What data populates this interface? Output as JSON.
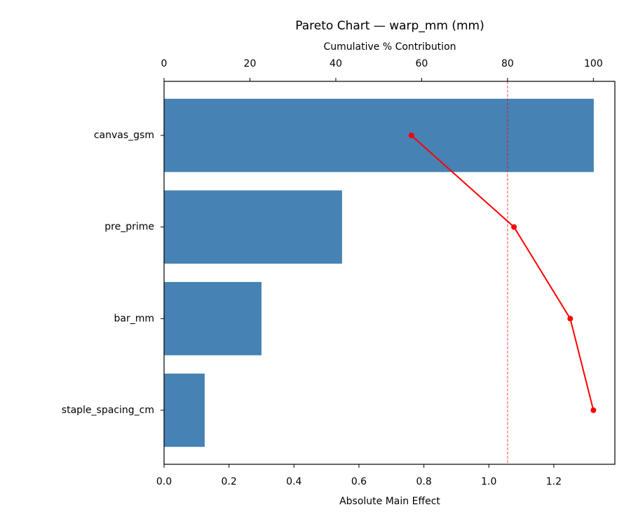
{
  "chart_data": {
    "type": "pareto",
    "title": "Pareto Chart — warp_mm (mm)",
    "xlabel": "Absolute Main Effect",
    "x2label": "Cumulative % Contribution",
    "categories": [
      "canvas_gsm",
      "pre_prime",
      "bar_mm",
      "staple_spacing_cm"
    ],
    "values": [
      1.323,
      0.548,
      0.3,
      0.125
    ],
    "color": "#4682b4",
    "cumulative": {
      "values": [
        57.6,
        81.5,
        94.6,
        100
      ],
      "color": "#ff0000",
      "axis": "x2"
    },
    "threshold": 80,
    "xlim": [
      0,
      1.388
    ],
    "xticks": [
      {
        "value": 0,
        "label": "0.0"
      },
      0.2,
      0.4,
      0.6,
      0.8,
      {
        "value": 1,
        "label": "1.0"
      },
      1.2
    ],
    "x2lim": [
      0,
      105
    ],
    "x2ticks": [
      0,
      20,
      40,
      60,
      80,
      100
    ]
  }
}
